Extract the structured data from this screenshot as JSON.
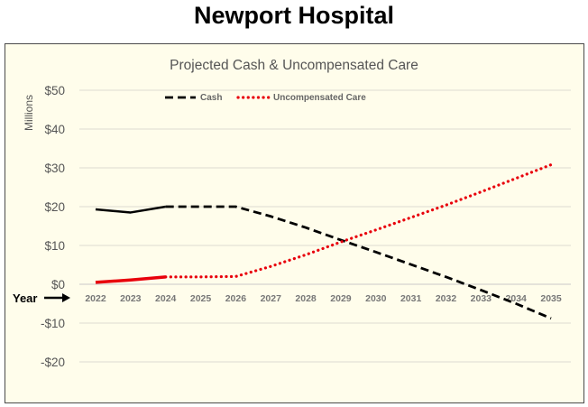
{
  "page_title": "Newport Hospital",
  "year_marker": "Year",
  "chart_data": {
    "type": "line",
    "title": "Projected Cash & Uncompensated Care",
    "ylabel": "Millions",
    "xlabel": "Year",
    "ylim": [
      -20,
      50
    ],
    "y_ticks": [
      50,
      40,
      30,
      20,
      10,
      0,
      -10,
      -20
    ],
    "y_tick_labels": [
      "$50",
      "$40",
      "$30",
      "$20",
      "$10",
      "$0",
      "-$10",
      "-$20"
    ],
    "categories": [
      "2022",
      "2023",
      "2024",
      "2025",
      "2026",
      "2027",
      "2028",
      "2029",
      "2030",
      "2031",
      "2032",
      "2033",
      "2034",
      "2035"
    ],
    "grid": true,
    "legend_position": "top-left",
    "series": [
      {
        "name": "Cash",
        "color": "#000000",
        "actual": {
          "x": [
            "2022",
            "2023",
            "2024"
          ],
          "values": [
            19.3,
            18.5,
            20.0
          ]
        },
        "projected": {
          "x": [
            "2024",
            "2025",
            "2026",
            "2027",
            "2028",
            "2029",
            "2030",
            "2031",
            "2032",
            "2033",
            "2034",
            "2035"
          ],
          "values": [
            20.0,
            20.0,
            20.0,
            17.5,
            14.6,
            11.4,
            8.3,
            5.1,
            1.9,
            -1.5,
            -5.0,
            -8.8
          ]
        }
      },
      {
        "name": "Uncompensated Care",
        "color": "#e8000b",
        "actual": {
          "x": [
            "2022",
            "2023",
            "2024"
          ],
          "values": [
            0.5,
            1.1,
            1.9
          ]
        },
        "projected": {
          "x": [
            "2024",
            "2025",
            "2026",
            "2027",
            "2028",
            "2029",
            "2030",
            "2031",
            "2032",
            "2033",
            "2034",
            "2035"
          ],
          "values": [
            1.9,
            1.9,
            2.0,
            4.6,
            7.6,
            10.9,
            14.0,
            17.2,
            20.4,
            23.8,
            27.3,
            30.8
          ]
        }
      }
    ]
  }
}
